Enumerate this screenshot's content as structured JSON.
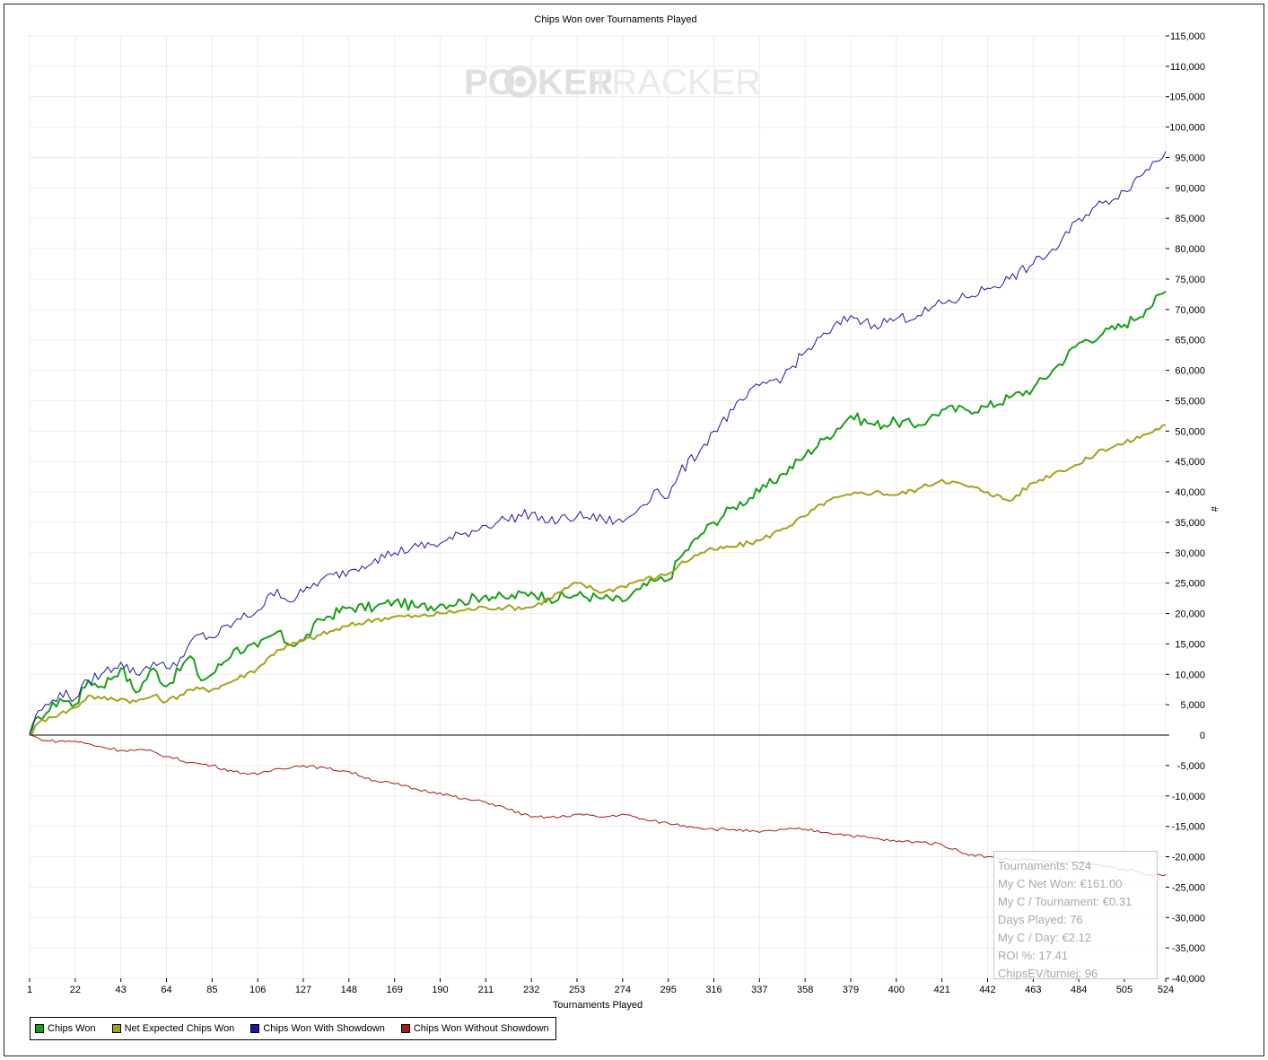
{
  "window": {
    "watermark": {
      "left": "PO",
      "right": "KER",
      "faded": "TRACKER"
    }
  },
  "legend_colors": [
    "#1a9e1a",
    "#a3a31a",
    "#1a1a9e",
    "#aa1818"
  ],
  "infobox": {
    "lines": [
      "Tournaments: 524",
      "My C Net Won: €161.00",
      "My C / Tournament: €0.31",
      "Days Played: 76",
      "My C / Day: €2.12",
      "ROI %: 17.41",
      "ChipsEV/turniej: 96"
    ]
  },
  "chart_data": {
    "type": "line",
    "title": "Chips Won over Tournaments Played",
    "xlabel": "Tournaments Played",
    "ylabel": "#",
    "xlim": [
      1,
      524
    ],
    "ylim": [
      -40000,
      115000
    ],
    "x_ticks": [
      1,
      22,
      43,
      64,
      85,
      106,
      127,
      148,
      169,
      190,
      211,
      232,
      253,
      274,
      295,
      316,
      337,
      358,
      379,
      400,
      421,
      442,
      463,
      484,
      505,
      524
    ],
    "y_ticks": [
      "115,000",
      "110,000",
      "105,000",
      "100,000",
      "95,000",
      "90,000",
      "85,000",
      "80,000",
      "75,000",
      "70,000",
      "65,000",
      "60,000",
      "55,000",
      "50,000",
      "45,000",
      "40,000",
      "35,000",
      "30,000",
      "25,000",
      "20,000",
      "15,000",
      "10,000",
      "5,000",
      "0",
      "-5,000",
      "-10,000",
      "-15,000",
      "-20,000",
      "-25,000",
      "-30,000",
      "-35,000",
      "-40,000"
    ],
    "y_tick_values": [
      115000,
      110000,
      105000,
      100000,
      95000,
      90000,
      85000,
      80000,
      75000,
      70000,
      65000,
      60000,
      55000,
      50000,
      45000,
      40000,
      35000,
      30000,
      25000,
      20000,
      15000,
      10000,
      5000,
      0,
      -5000,
      -10000,
      -15000,
      -20000,
      -25000,
      -30000,
      -35000,
      -40000
    ],
    "grid": true,
    "legend_position": "bottom-left",
    "series": [
      {
        "name": "Chips Won",
        "color": "#1a9e1a",
        "width": 2,
        "x": [
          1,
          5,
          10,
          15,
          22,
          28,
          34,
          43,
          50,
          58,
          64,
          75,
          80,
          85,
          95,
          106,
          115,
          120,
          127,
          135,
          148,
          160,
          169,
          180,
          190,
          200,
          211,
          220,
          232,
          240,
          253,
          265,
          274,
          282,
          290,
          295,
          300,
          310,
          316,
          325,
          337,
          348,
          358,
          368,
          379,
          390,
          400,
          410,
          415,
          421,
          432,
          442,
          452,
          463,
          475,
          484,
          495,
          505,
          515,
          524
        ],
        "y": [
          0,
          3000,
          4000,
          6000,
          5000,
          9000,
          8000,
          11000,
          7000,
          11000,
          8000,
          13000,
          9000,
          10000,
          14000,
          14500,
          17000,
          15000,
          15500,
          19000,
          21000,
          21000,
          22000,
          21000,
          21500,
          22000,
          23000,
          22500,
          23500,
          22500,
          23000,
          22500,
          22000,
          24000,
          25500,
          25500,
          29000,
          33000,
          35000,
          37500,
          40000,
          43000,
          46000,
          49000,
          52500,
          51000,
          51500,
          51000,
          52000,
          53500,
          53500,
          54000,
          55500,
          57000,
          61000,
          64500,
          66000,
          67500,
          70000,
          73000
        ]
      },
      {
        "name": "Net Expected Chips Won",
        "color": "#a3a31a",
        "width": 2,
        "x": [
          1,
          5,
          10,
          15,
          22,
          28,
          34,
          43,
          50,
          58,
          64,
          75,
          85,
          95,
          106,
          115,
          127,
          135,
          148,
          160,
          169,
          180,
          190,
          200,
          211,
          220,
          232,
          240,
          253,
          265,
          274,
          282,
          290,
          295,
          300,
          310,
          316,
          325,
          337,
          348,
          358,
          368,
          379,
          390,
          400,
          410,
          421,
          432,
          442,
          452,
          463,
          475,
          484,
          495,
          505,
          515,
          524
        ],
        "y": [
          0,
          2000,
          3000,
          3500,
          4500,
          6500,
          6000,
          6000,
          5500,
          6500,
          5500,
          7500,
          7500,
          9000,
          11000,
          14000,
          15500,
          16500,
          18000,
          19000,
          19500,
          19500,
          20000,
          20500,
          21000,
          21000,
          21000,
          22500,
          25000,
          23500,
          24500,
          25500,
          26000,
          26500,
          28000,
          30000,
          30500,
          31000,
          32000,
          34000,
          36000,
          38500,
          39500,
          40000,
          39500,
          40500,
          42000,
          41000,
          40000,
          38500,
          41500,
          43500,
          44500,
          47000,
          48000,
          49500,
          51000
        ]
      },
      {
        "name": "Chips Won With Showdown",
        "color": "#1a1a9e",
        "width": 1,
        "x": [
          1,
          5,
          10,
          15,
          22,
          28,
          34,
          43,
          50,
          58,
          64,
          72,
          78,
          85,
          95,
          106,
          115,
          120,
          127,
          135,
          148,
          160,
          169,
          180,
          190,
          200,
          211,
          220,
          232,
          240,
          253,
          265,
          274,
          282,
          290,
          295,
          300,
          310,
          316,
          325,
          337,
          348,
          358,
          368,
          379,
          385,
          390,
          400,
          410,
          421,
          432,
          442,
          452,
          463,
          475,
          484,
          495,
          505,
          515,
          524
        ],
        "y": [
          0,
          4000,
          5000,
          7000,
          6000,
          9000,
          10000,
          12000,
          10000,
          12000,
          11000,
          13000,
          16500,
          16000,
          18500,
          20500,
          24000,
          22000,
          23500,
          25500,
          27000,
          29000,
          30000,
          31000,
          31500,
          33000,
          34500,
          35500,
          36500,
          35000,
          36000,
          35500,
          35000,
          37500,
          40500,
          39000,
          43000,
          47000,
          50000,
          53500,
          57500,
          59000,
          63000,
          66000,
          69000,
          68000,
          67500,
          68500,
          69000,
          71000,
          72000,
          73500,
          75000,
          77500,
          80500,
          85000,
          87500,
          89500,
          93000,
          96000
        ]
      },
      {
        "name": "Chips Won Without Showdown",
        "color": "#aa1818",
        "width": 1,
        "x": [
          1,
          5,
          10,
          22,
          35,
          43,
          55,
          64,
          75,
          85,
          95,
          106,
          115,
          127,
          138,
          148,
          160,
          169,
          180,
          190,
          200,
          211,
          220,
          232,
          245,
          253,
          265,
          274,
          285,
          295,
          305,
          316,
          325,
          337,
          348,
          358,
          368,
          379,
          390,
          400,
          410,
          421,
          432,
          442,
          452,
          463,
          475,
          484,
          495,
          505,
          515,
          524
        ],
        "y": [
          0,
          -500,
          -1000,
          -1000,
          -2000,
          -2500,
          -2500,
          -3500,
          -4500,
          -5000,
          -6000,
          -6500,
          -5500,
          -5000,
          -5500,
          -6000,
          -7500,
          -8000,
          -9000,
          -9500,
          -10500,
          -11000,
          -12000,
          -13500,
          -13500,
          -13000,
          -13500,
          -13000,
          -14000,
          -14500,
          -15000,
          -15500,
          -15500,
          -16000,
          -15500,
          -15500,
          -16000,
          -16500,
          -17000,
          -17500,
          -17500,
          -18000,
          -19500,
          -20000,
          -20500,
          -20500,
          -21000,
          -21000,
          -21500,
          -22000,
          -23000,
          -23000
        ]
      }
    ]
  }
}
